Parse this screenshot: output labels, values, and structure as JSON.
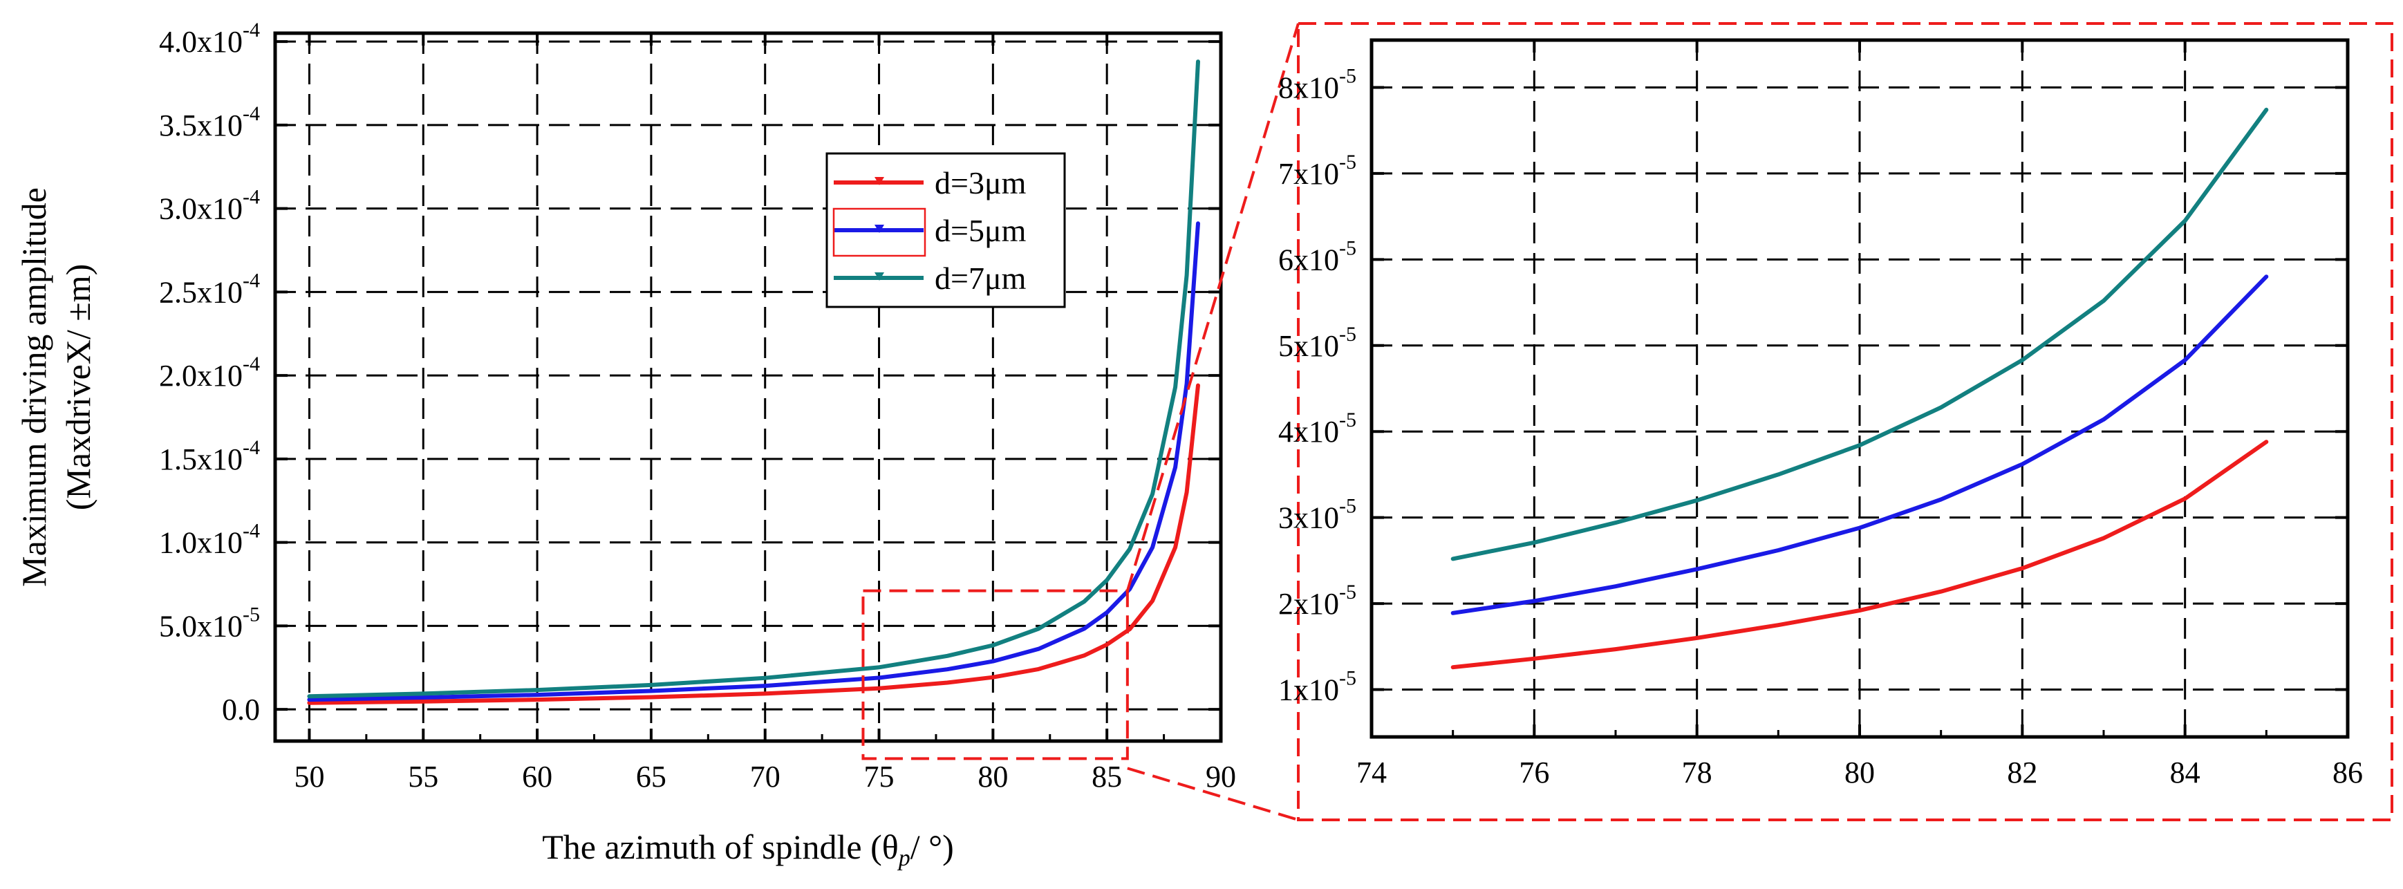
{
  "figure": {
    "y_label_line1": "Maximum driving amplitude",
    "y_label_line2": "(MaxdriveX/ ±m)",
    "x_label": "The azimuth of spindle (θ",
    "x_label_sub": "p",
    "x_label_tail": "/ °)"
  },
  "colors": {
    "d3": "#ee1c1c",
    "d5": "#1a1ae6",
    "d7": "#128080",
    "zoom_box": "#ee1c1c",
    "axis": "#000000",
    "grid": "#000000"
  },
  "chart_data": [
    {
      "type": "line",
      "id": "main",
      "title": "",
      "xlabel": "The azimuth of spindle (θp/ °)",
      "ylabel": "Maximum driving amplitude (MaxdriveX/ ±m)",
      "xlim": [
        48.5,
        90
      ],
      "ylim": [
        -1.9e-05,
        0.000405
      ],
      "x_ticks": [
        50,
        55,
        60,
        65,
        70,
        75,
        80,
        85,
        90
      ],
      "x_tick_labels": [
        "50",
        "55",
        "60",
        "65",
        "70",
        "75",
        "80",
        "85",
        "90"
      ],
      "y_ticks": [
        0,
        5e-05,
        0.0001,
        0.00015,
        0.0002,
        0.00025,
        0.0003,
        0.00035,
        0.0004
      ],
      "y_tick_labels": [
        {
          "mantissa": "0.0",
          "exp": ""
        },
        {
          "mantissa": "5.0x10",
          "exp": "-5"
        },
        {
          "mantissa": "1.0x10",
          "exp": "-4"
        },
        {
          "mantissa": "1.5x10",
          "exp": "-4"
        },
        {
          "mantissa": "2.0x10",
          "exp": "-4"
        },
        {
          "mantissa": "2.5x10",
          "exp": "-4"
        },
        {
          "mantissa": "3.0x10",
          "exp": "-4"
        },
        {
          "mantissa": "3.5x10",
          "exp": "-4"
        },
        {
          "mantissa": "4.0x10",
          "exp": "-4"
        }
      ],
      "grid": true,
      "legend_position": "upper-middle-right",
      "zoom_region": {
        "x": [
          74.3,
          85.9
        ],
        "y": [
          -2.95e-05,
          7.1e-05
        ]
      },
      "series": [
        {
          "name": "d=3μm",
          "key": "d3",
          "x": [
            50,
            55,
            60,
            65,
            70,
            75,
            78,
            80,
            82,
            84,
            85,
            86,
            87,
            88,
            88.5,
            89
          ],
          "y": [
            3.9e-06,
            4.7e-06,
            5.8e-06,
            7.3e-06,
            9.4e-06,
            1.26e-05,
            1.6e-05,
            1.92e-05,
            2.41e-05,
            3.22e-05,
            3.88e-05,
            4.8e-05,
            6.5e-05,
            9.7e-05,
            0.00013,
            0.000194
          ]
        },
        {
          "name": "d=5μm",
          "key": "d5",
          "x": [
            50,
            55,
            60,
            65,
            70,
            75,
            78,
            80,
            82,
            84,
            85,
            86,
            87,
            88,
            88.5,
            89
          ],
          "y": [
            5.8e-06,
            7.1e-06,
            8.7e-06,
            1.1e-05,
            1.41e-05,
            1.89e-05,
            2.4e-05,
            2.88e-05,
            3.62e-05,
            4.83e-05,
            5.8e-05,
            7.2e-05,
            9.7e-05,
            0.000145,
            0.000195,
            0.000291
          ]
        },
        {
          "name": "d=7μm",
          "key": "d7",
          "x": [
            50,
            55,
            60,
            65,
            70,
            75,
            78,
            80,
            82,
            84,
            85,
            86,
            87,
            88,
            88.5,
            89
          ],
          "y": [
            7.8e-06,
            9.4e-06,
            1.16e-05,
            1.46e-05,
            1.88e-05,
            2.52e-05,
            3.2e-05,
            3.84e-05,
            4.83e-05,
            6.45e-05,
            7.74e-05,
            9.6e-05,
            0.000129,
            0.000193,
            0.00026,
            0.000388
          ]
        }
      ]
    },
    {
      "type": "line",
      "id": "zoom",
      "title": "",
      "xlabel": "",
      "ylabel": "",
      "xlim": [
        74,
        86
      ],
      "ylim": [
        4.5e-06,
        8.55e-05
      ],
      "x_ticks": [
        74,
        76,
        78,
        80,
        82,
        84,
        86
      ],
      "x_tick_labels": [
        "74",
        "76",
        "78",
        "80",
        "82",
        "84",
        "86"
      ],
      "y_ticks": [
        1e-05,
        2e-05,
        3e-05,
        4e-05,
        5e-05,
        6e-05,
        7e-05,
        8e-05
      ],
      "y_tick_labels": [
        {
          "mantissa": "1x10",
          "exp": "-5"
        },
        {
          "mantissa": "2x10",
          "exp": "-5"
        },
        {
          "mantissa": "3x10",
          "exp": "-5"
        },
        {
          "mantissa": "4x10",
          "exp": "-5"
        },
        {
          "mantissa": "5x10",
          "exp": "-5"
        },
        {
          "mantissa": "6x10",
          "exp": "-5"
        },
        {
          "mantissa": "7x10",
          "exp": "-5"
        },
        {
          "mantissa": "8x10",
          "exp": "-5"
        }
      ],
      "grid": true,
      "series": [
        {
          "name": "d=3μm",
          "key": "d3",
          "x": [
            75,
            76,
            77,
            78,
            79,
            80,
            81,
            82,
            83,
            84,
            85
          ],
          "y": [
            1.26e-05,
            1.36e-05,
            1.47e-05,
            1.6e-05,
            1.75e-05,
            1.92e-05,
            2.14e-05,
            2.41e-05,
            2.76e-05,
            3.22e-05,
            3.88e-05
          ]
        },
        {
          "name": "d=5μm",
          "key": "d5",
          "x": [
            75,
            76,
            77,
            78,
            79,
            80,
            81,
            82,
            83,
            84,
            85
          ],
          "y": [
            1.89e-05,
            2.03e-05,
            2.2e-05,
            2.4e-05,
            2.62e-05,
            2.88e-05,
            3.21e-05,
            3.62e-05,
            4.14e-05,
            4.83e-05,
            5.8e-05
          ]
        },
        {
          "name": "d=7μm",
          "key": "d7",
          "x": [
            75,
            76,
            77,
            78,
            79,
            80,
            81,
            82,
            83,
            84,
            85
          ],
          "y": [
            2.52e-05,
            2.71e-05,
            2.94e-05,
            3.2e-05,
            3.5e-05,
            3.84e-05,
            4.28e-05,
            4.83e-05,
            5.52e-05,
            6.45e-05,
            7.74e-05
          ]
        }
      ]
    }
  ]
}
